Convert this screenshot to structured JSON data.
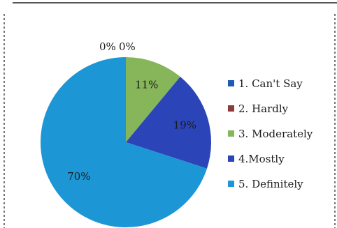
{
  "chart_data": {
    "type": "pie",
    "categories": [
      "1. Can't Say",
      "2. Hardly",
      "3. Moderately",
      "4.Mostly",
      "5. Definitely"
    ],
    "values": [
      0,
      0,
      11,
      19,
      70
    ],
    "data_labels": [
      "0%",
      "0%",
      "11%",
      "19%",
      "70%"
    ],
    "colors": [
      "#1f5bb5",
      "#8e3b3b",
      "#86b55a",
      "#2b45b8",
      "#1d96d6"
    ],
    "legend_position": "right"
  }
}
